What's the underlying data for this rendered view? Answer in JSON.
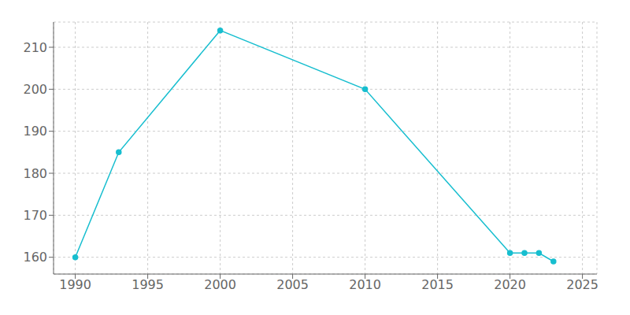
{
  "chart_data": {
    "type": "line",
    "x": [
      1990,
      1993,
      2000,
      2010,
      2020,
      2021,
      2022,
      2023
    ],
    "values": [
      160,
      185,
      214,
      200,
      161,
      161,
      161,
      159
    ],
    "color": "#17becf",
    "marker": "circle",
    "xlim": [
      1988.5,
      2026
    ],
    "ylim": [
      156,
      216
    ],
    "xticks": [
      1990,
      1995,
      2000,
      2005,
      2010,
      2015,
      2020,
      2025
    ],
    "yticks": [
      160,
      170,
      180,
      190,
      200,
      210
    ],
    "grid": true
  }
}
